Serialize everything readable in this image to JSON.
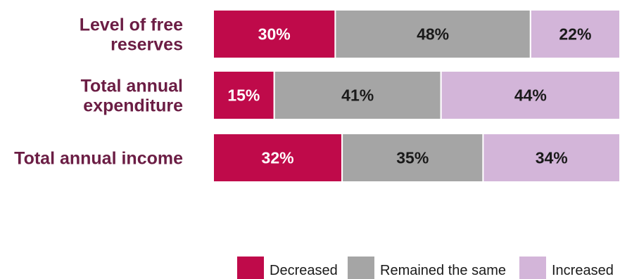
{
  "chart_data": {
    "type": "bar",
    "orientation": "horizontal",
    "stacked": true,
    "percent": true,
    "categories": [
      [
        "Level of free",
        "reserves"
      ],
      [
        "Total annual",
        "expenditure"
      ],
      [
        "Total annual income"
      ]
    ],
    "series": [
      {
        "name": "Decreased",
        "color": "#bf0a4a",
        "label_color": "#ffffff",
        "values": [
          30,
          15,
          32
        ]
      },
      {
        "name": "Remained the same",
        "color": "#a5a5a5",
        "label_color": "#1a1a1a",
        "values": [
          48,
          41,
          35
        ]
      },
      {
        "name": "Increased",
        "color": "#d3b5d9",
        "label_color": "#1a1a1a",
        "values": [
          22,
          44,
          34
        ]
      }
    ],
    "value_suffix": "%",
    "legend_position": "bottom-right",
    "grid": false
  }
}
